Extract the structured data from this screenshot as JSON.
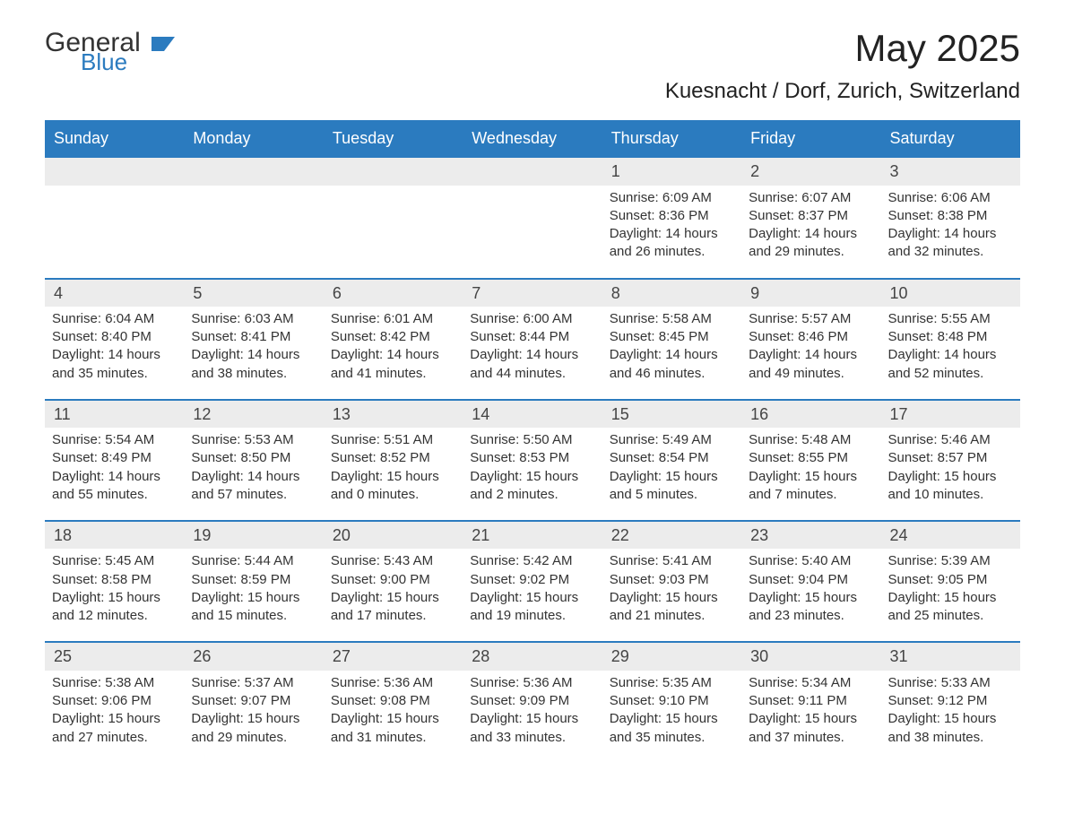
{
  "brand": {
    "part1": "General",
    "part2": "Blue"
  },
  "title": "May 2025",
  "location": "Kuesnacht / Dorf, Zurich, Switzerland",
  "colors": {
    "accent": "#2b7bbf",
    "header_bg": "#2b7bbf",
    "header_text": "#ffffff",
    "daynum_bg": "#ececec",
    "text": "#333333",
    "background": "#ffffff"
  },
  "layout": {
    "columns": 7,
    "type": "calendar-month",
    "start_day_index": 4
  },
  "weekdays": [
    "Sunday",
    "Monday",
    "Tuesday",
    "Wednesday",
    "Thursday",
    "Friday",
    "Saturday"
  ],
  "labels": {
    "sunrise": "Sunrise:",
    "sunset": "Sunset:",
    "daylight": "Daylight:"
  },
  "weeks": [
    [
      null,
      null,
      null,
      null,
      {
        "n": "1",
        "sunrise": "6:09 AM",
        "sunset": "8:36 PM",
        "daylight": "14 hours and 26 minutes."
      },
      {
        "n": "2",
        "sunrise": "6:07 AM",
        "sunset": "8:37 PM",
        "daylight": "14 hours and 29 minutes."
      },
      {
        "n": "3",
        "sunrise": "6:06 AM",
        "sunset": "8:38 PM",
        "daylight": "14 hours and 32 minutes."
      }
    ],
    [
      {
        "n": "4",
        "sunrise": "6:04 AM",
        "sunset": "8:40 PM",
        "daylight": "14 hours and 35 minutes."
      },
      {
        "n": "5",
        "sunrise": "6:03 AM",
        "sunset": "8:41 PM",
        "daylight": "14 hours and 38 minutes."
      },
      {
        "n": "6",
        "sunrise": "6:01 AM",
        "sunset": "8:42 PM",
        "daylight": "14 hours and 41 minutes."
      },
      {
        "n": "7",
        "sunrise": "6:00 AM",
        "sunset": "8:44 PM",
        "daylight": "14 hours and 44 minutes."
      },
      {
        "n": "8",
        "sunrise": "5:58 AM",
        "sunset": "8:45 PM",
        "daylight": "14 hours and 46 minutes."
      },
      {
        "n": "9",
        "sunrise": "5:57 AM",
        "sunset": "8:46 PM",
        "daylight": "14 hours and 49 minutes."
      },
      {
        "n": "10",
        "sunrise": "5:55 AM",
        "sunset": "8:48 PM",
        "daylight": "14 hours and 52 minutes."
      }
    ],
    [
      {
        "n": "11",
        "sunrise": "5:54 AM",
        "sunset": "8:49 PM",
        "daylight": "14 hours and 55 minutes."
      },
      {
        "n": "12",
        "sunrise": "5:53 AM",
        "sunset": "8:50 PM",
        "daylight": "14 hours and 57 minutes."
      },
      {
        "n": "13",
        "sunrise": "5:51 AM",
        "sunset": "8:52 PM",
        "daylight": "15 hours and 0 minutes."
      },
      {
        "n": "14",
        "sunrise": "5:50 AM",
        "sunset": "8:53 PM",
        "daylight": "15 hours and 2 minutes."
      },
      {
        "n": "15",
        "sunrise": "5:49 AM",
        "sunset": "8:54 PM",
        "daylight": "15 hours and 5 minutes."
      },
      {
        "n": "16",
        "sunrise": "5:48 AM",
        "sunset": "8:55 PM",
        "daylight": "15 hours and 7 minutes."
      },
      {
        "n": "17",
        "sunrise": "5:46 AM",
        "sunset": "8:57 PM",
        "daylight": "15 hours and 10 minutes."
      }
    ],
    [
      {
        "n": "18",
        "sunrise": "5:45 AM",
        "sunset": "8:58 PM",
        "daylight": "15 hours and 12 minutes."
      },
      {
        "n": "19",
        "sunrise": "5:44 AM",
        "sunset": "8:59 PM",
        "daylight": "15 hours and 15 minutes."
      },
      {
        "n": "20",
        "sunrise": "5:43 AM",
        "sunset": "9:00 PM",
        "daylight": "15 hours and 17 minutes."
      },
      {
        "n": "21",
        "sunrise": "5:42 AM",
        "sunset": "9:02 PM",
        "daylight": "15 hours and 19 minutes."
      },
      {
        "n": "22",
        "sunrise": "5:41 AM",
        "sunset": "9:03 PM",
        "daylight": "15 hours and 21 minutes."
      },
      {
        "n": "23",
        "sunrise": "5:40 AM",
        "sunset": "9:04 PM",
        "daylight": "15 hours and 23 minutes."
      },
      {
        "n": "24",
        "sunrise": "5:39 AM",
        "sunset": "9:05 PM",
        "daylight": "15 hours and 25 minutes."
      }
    ],
    [
      {
        "n": "25",
        "sunrise": "5:38 AM",
        "sunset": "9:06 PM",
        "daylight": "15 hours and 27 minutes."
      },
      {
        "n": "26",
        "sunrise": "5:37 AM",
        "sunset": "9:07 PM",
        "daylight": "15 hours and 29 minutes."
      },
      {
        "n": "27",
        "sunrise": "5:36 AM",
        "sunset": "9:08 PM",
        "daylight": "15 hours and 31 minutes."
      },
      {
        "n": "28",
        "sunrise": "5:36 AM",
        "sunset": "9:09 PM",
        "daylight": "15 hours and 33 minutes."
      },
      {
        "n": "29",
        "sunrise": "5:35 AM",
        "sunset": "9:10 PM",
        "daylight": "15 hours and 35 minutes."
      },
      {
        "n": "30",
        "sunrise": "5:34 AM",
        "sunset": "9:11 PM",
        "daylight": "15 hours and 37 minutes."
      },
      {
        "n": "31",
        "sunrise": "5:33 AM",
        "sunset": "9:12 PM",
        "daylight": "15 hours and 38 minutes."
      }
    ]
  ]
}
